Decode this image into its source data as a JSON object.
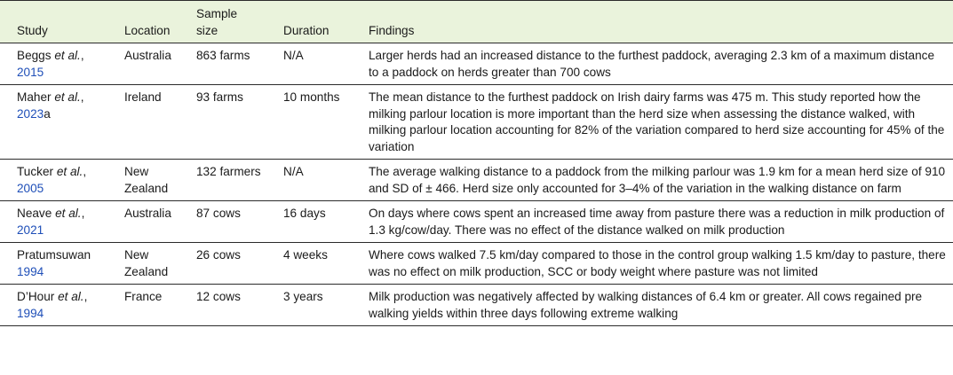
{
  "headers": {
    "study": "Study",
    "location": "Location",
    "sample_size": "Sample size",
    "duration": "Duration",
    "findings": "Findings"
  },
  "rows": [
    {
      "author": "Beggs",
      "etal": "et al.",
      "year": "2015",
      "suffix": "",
      "location": "Australia",
      "sample_size": "863 farms",
      "duration": "N/A",
      "findings": "Larger herds had an increased distance to the furthest paddock, averaging 2.3 km of a maximum distance to a paddock on herds greater than 700 cows"
    },
    {
      "author": "Maher",
      "etal": "et al.",
      "year": "2023",
      "suffix": "a",
      "location": "Ireland",
      "sample_size": "93 farms",
      "duration": "10 months",
      "findings": "The mean distance to the furthest paddock on Irish dairy farms was 475 m. This study reported how the milking parlour location is more important than the herd size when assessing the distance walked, with milking parlour location accounting for 82% of the variation compared to herd size accounting for 45% of the variation"
    },
    {
      "author": "Tucker",
      "etal": "et al.",
      "year": "2005",
      "suffix": "",
      "location": "New Zealand",
      "sample_size": "132 farmers",
      "duration": "N/A",
      "findings": "The average walking distance to a paddock from the milking parlour was 1.9 km for a mean herd size of 910 and SD of ± 466. Herd size only accounted for 3–4% of the variation in the walking distance on farm"
    },
    {
      "author": "Neave",
      "etal": "et al.",
      "year": "2021",
      "suffix": "",
      "location": "Australia",
      "sample_size": "87 cows",
      "duration": "16 days",
      "findings": "On days where cows spent an increased time away from pasture there was a reduction in milk production of 1.3 kg/cow/day. There was no effect of the distance walked on milk production"
    },
    {
      "author": "Pratumsuwan",
      "etal": "",
      "year": "1994",
      "suffix": "",
      "location": "New Zealand",
      "sample_size": "26 cows",
      "duration": "4 weeks",
      "findings": "Where cows walked 7.5 km/day compared to those in the control group walking 1.5 km/day to pasture, there was no effect on milk production, SCC or body weight where pasture was not limited"
    },
    {
      "author": "D’Hour",
      "etal": "et al.",
      "year": "1994",
      "suffix": "",
      "location": "France",
      "sample_size": "12 cows",
      "duration": "3 years",
      "findings": "Milk production was negatively affected by walking distances of 6.4 km or greater. All cows regained pre walking yields within three days following extreme walking"
    }
  ]
}
